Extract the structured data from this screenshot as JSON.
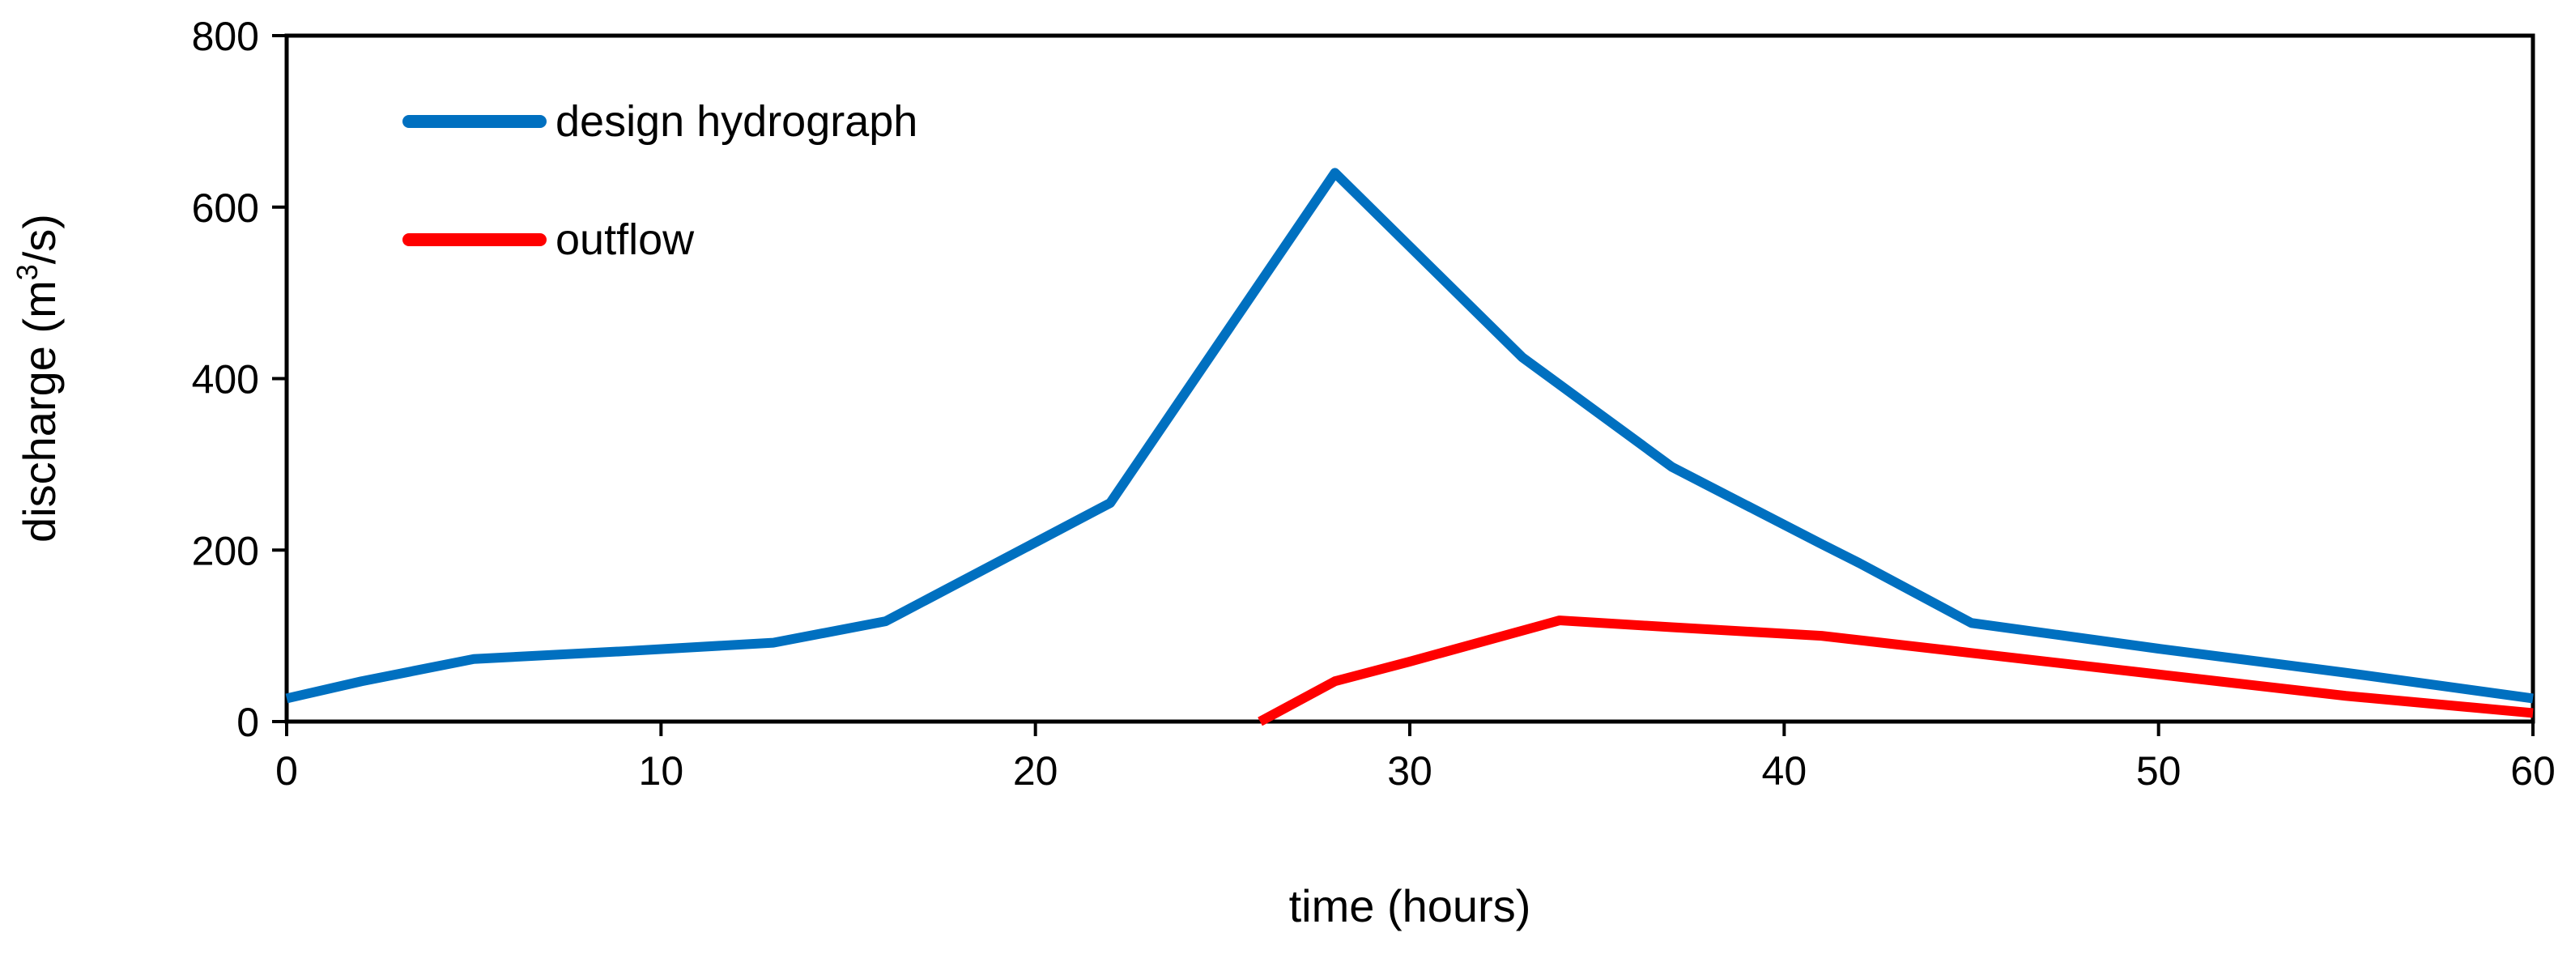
{
  "chart_data": {
    "type": "line",
    "title": "",
    "xlabel": "time (hours)",
    "ylabel": {
      "prefix": "discharge (m",
      "sup": "3",
      "suffix": "/s)"
    },
    "xlim": [
      0,
      60
    ],
    "ylim": [
      0,
      800
    ],
    "xticks": [
      "0",
      "10",
      "20",
      "30",
      "40",
      "50",
      "60"
    ],
    "yticks": [
      "0",
      "200",
      "400",
      "600",
      "800"
    ],
    "grid": false,
    "legend_position": "top-left",
    "series": [
      {
        "name": "design hydrograph",
        "color": "#0070C0",
        "x": [
          0,
          2,
          5,
          9,
          13,
          16,
          22,
          28,
          33,
          37,
          41,
          42,
          45,
          50,
          55,
          60
        ],
        "y": [
          27,
          47,
          73,
          82,
          92,
          117,
          255,
          640,
          425,
          297,
          207,
          185,
          115,
          85,
          57,
          27
        ]
      },
      {
        "name": "outflow",
        "color": "#FF0000",
        "x": [
          26,
          28,
          30,
          34,
          37,
          41,
          45,
          50,
          55,
          60
        ],
        "y": [
          0,
          47,
          70,
          118,
          110,
          100,
          80,
          55,
          30,
          10
        ]
      }
    ]
  }
}
